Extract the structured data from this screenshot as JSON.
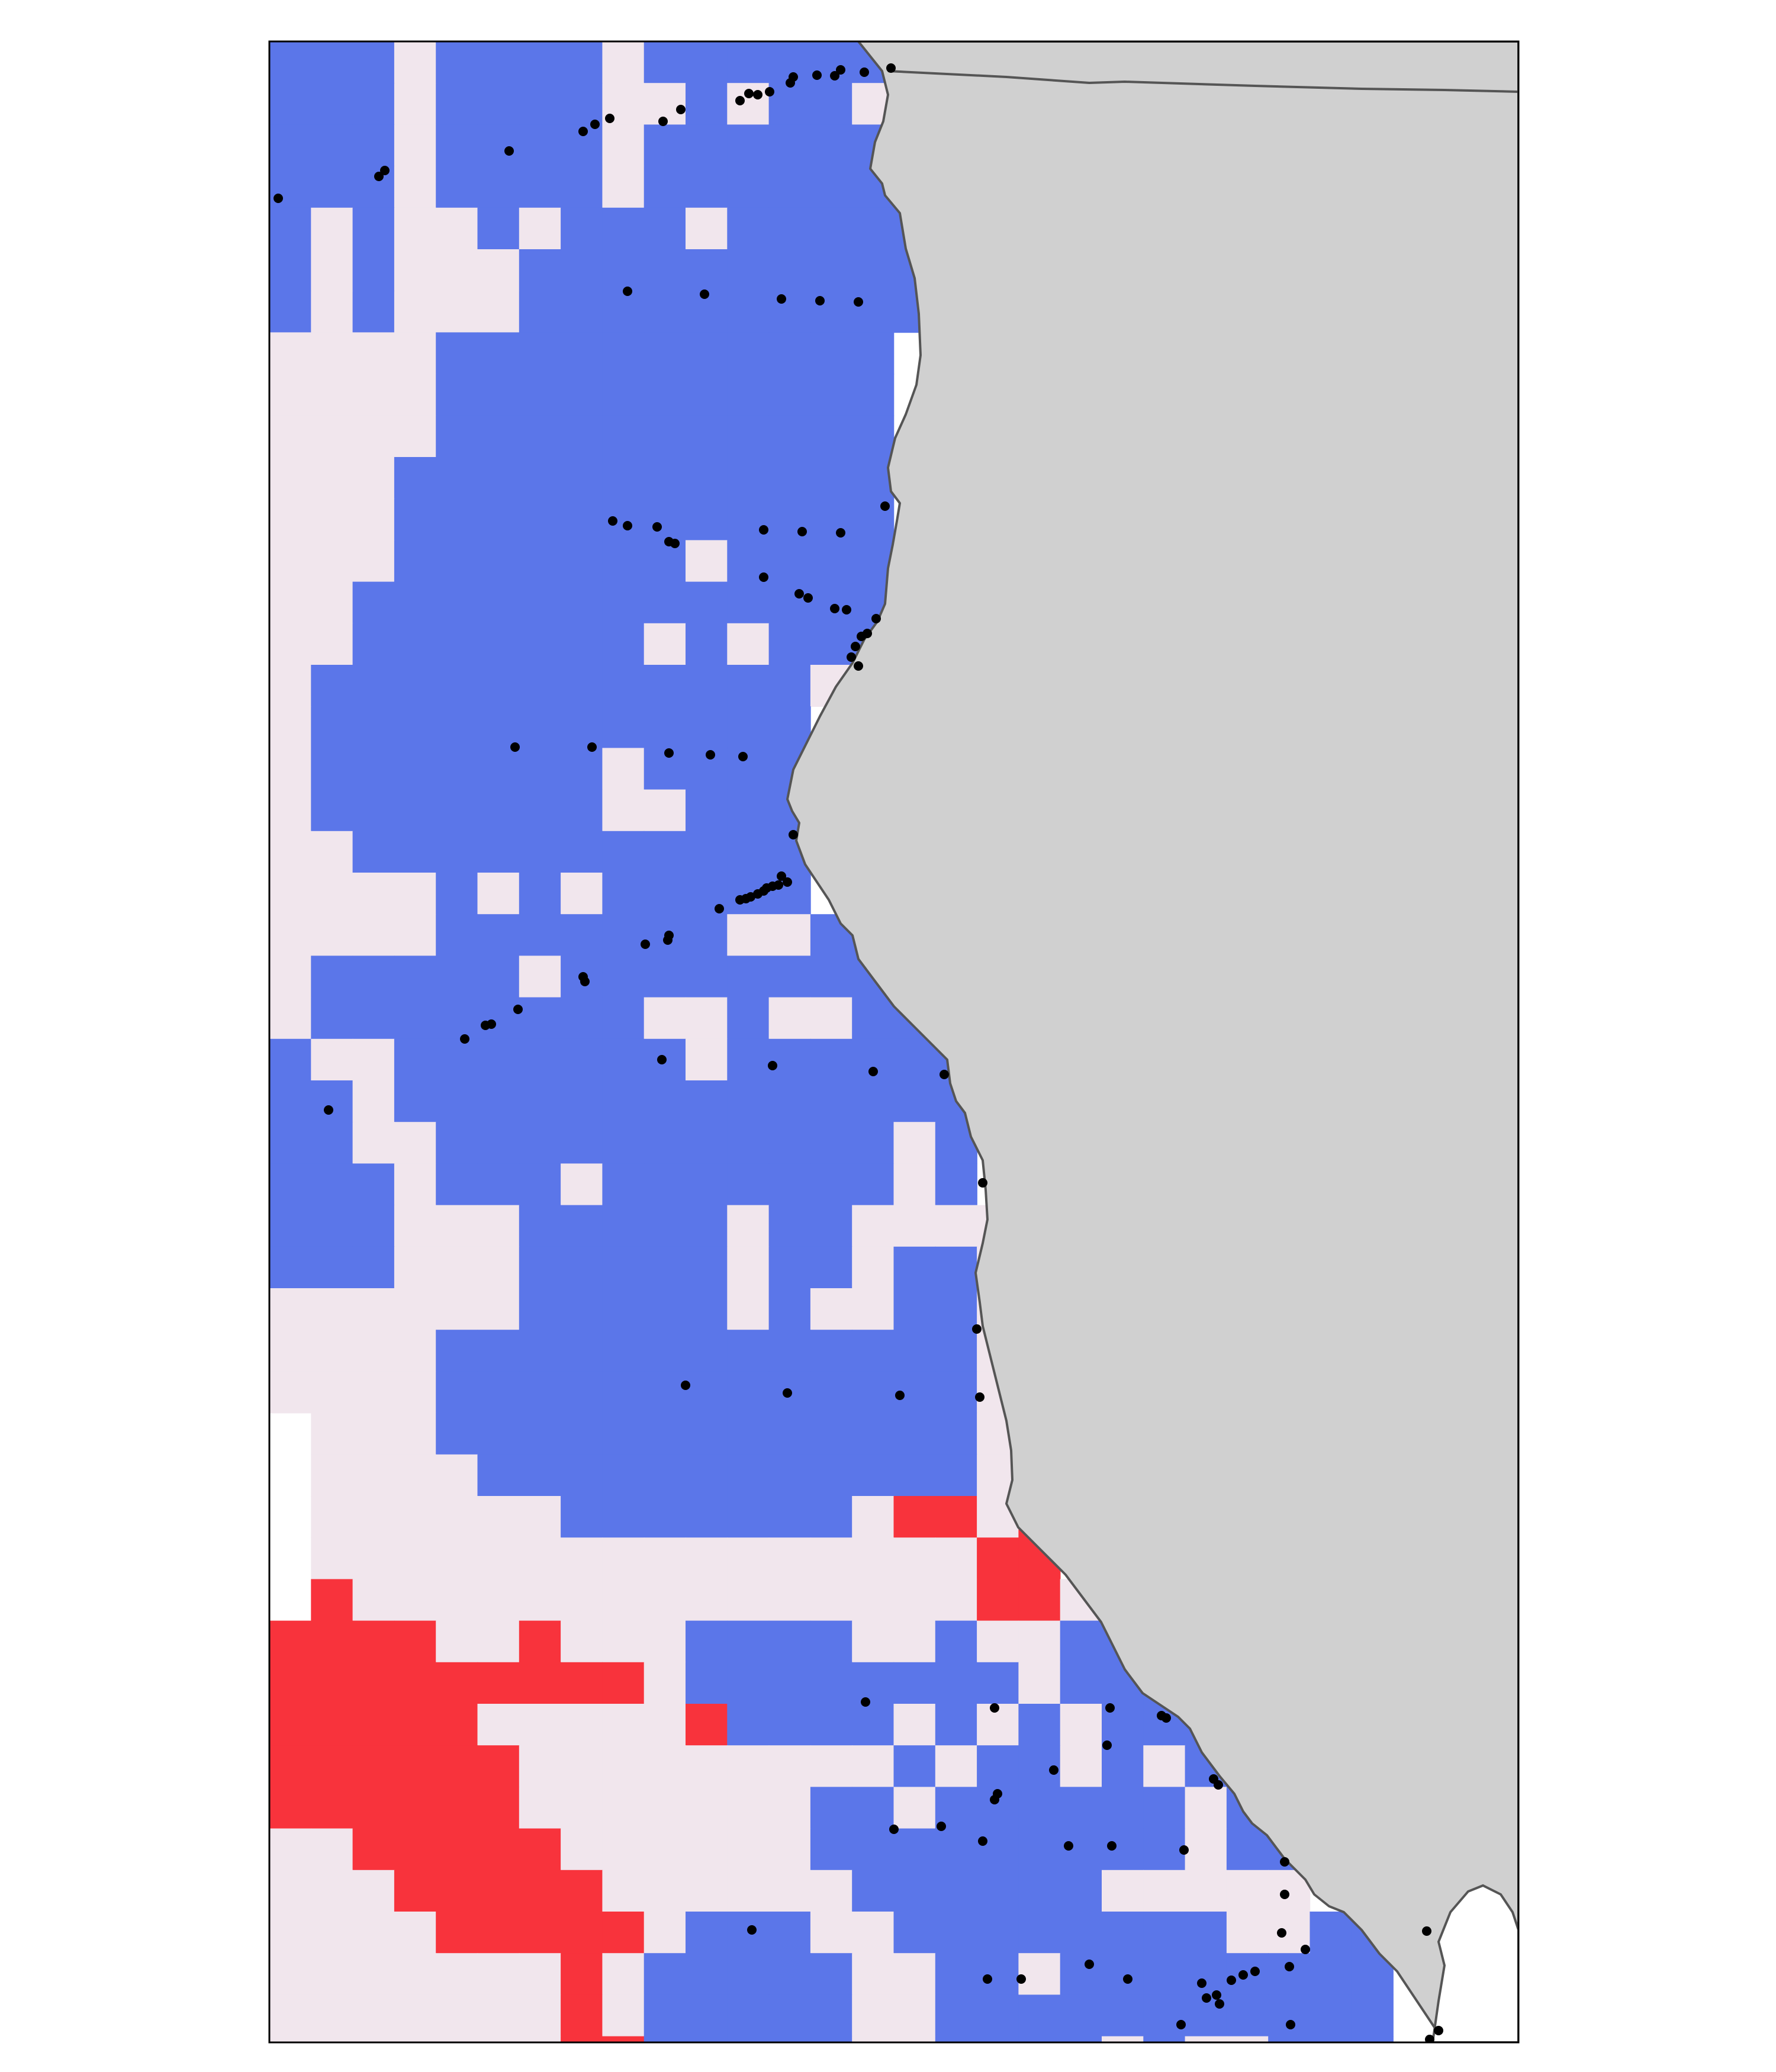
{
  "map": {
    "colors": {
      "background": "#ffffff",
      "land": "#d0d0d0",
      "coastline": "#555555",
      "blue": "#5b76e9",
      "pink": "#f1e6ed",
      "red": "#f8333c",
      "station": "#000000"
    },
    "stations_visible": true
  }
}
